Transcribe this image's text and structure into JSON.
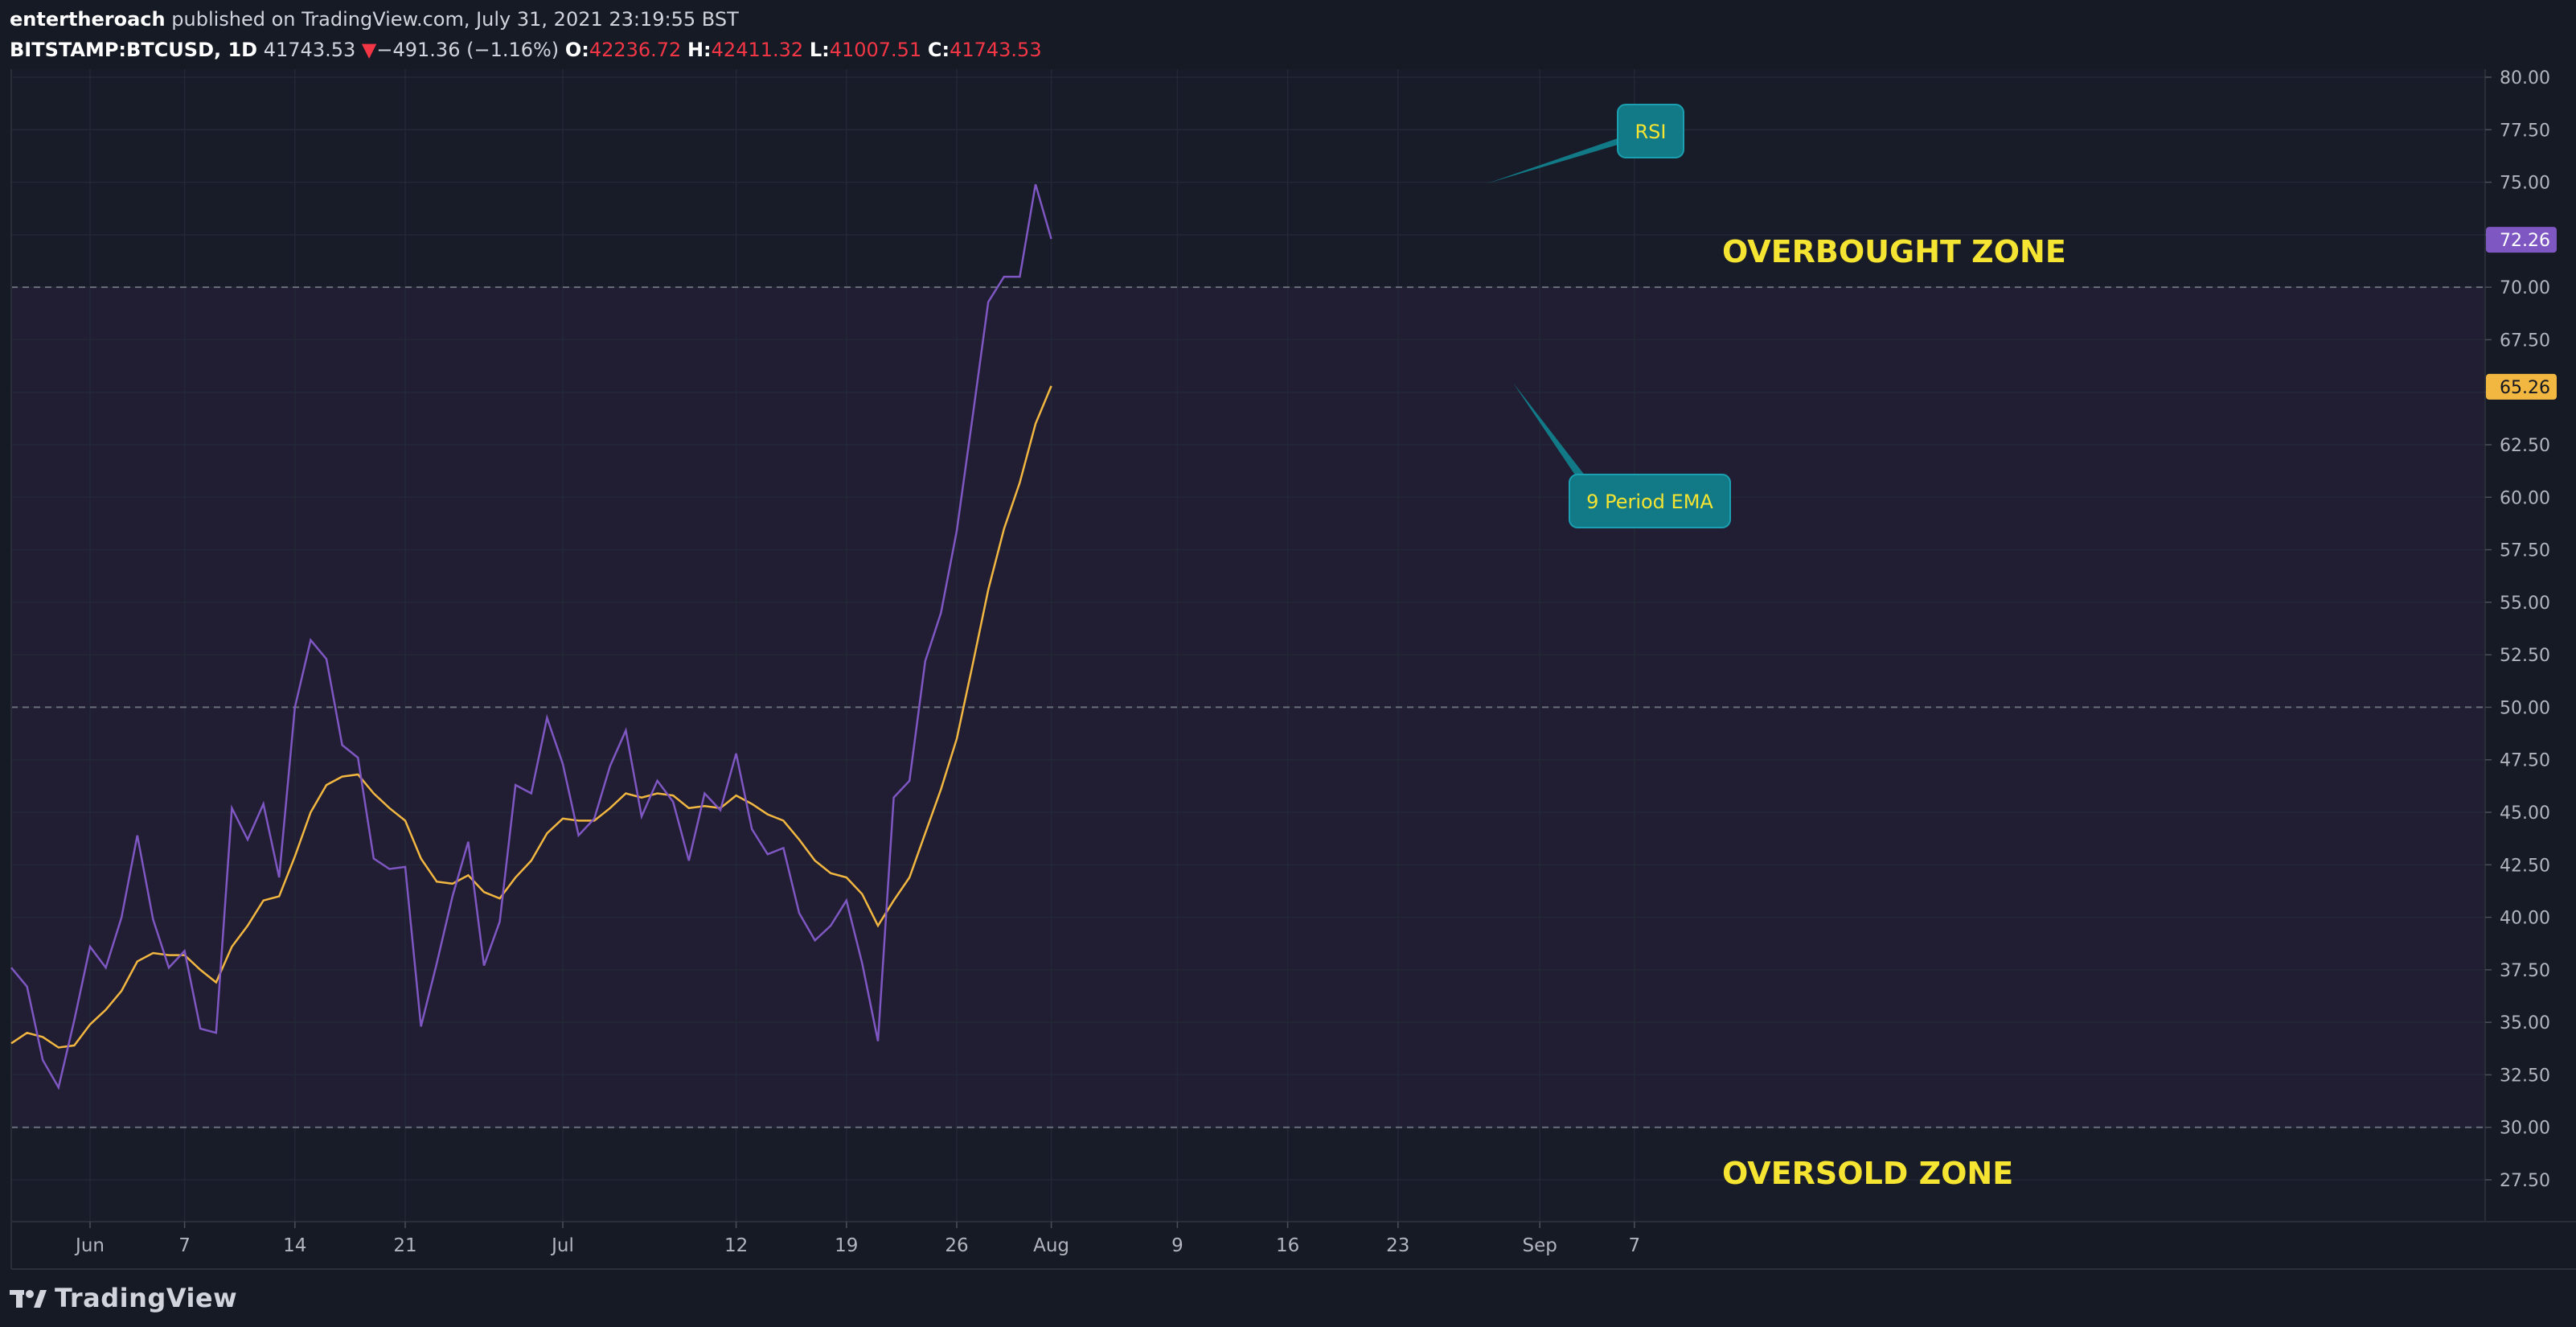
{
  "header": {
    "author": "entertheroach",
    "published_text": "published on TradingView.com, July 31, 2021 23:19:55 BST",
    "symbol": "BITSTAMP:BTCUSD, 1D",
    "price": "41743.53",
    "change_arrow": "▼",
    "change": "−491.36 (−1.16%)",
    "o_label": "O:",
    "o_value": "42236.72",
    "h_label": "H:",
    "h_value": "42411.32",
    "l_label": "L:",
    "l_value": "41007.51",
    "c_label": "C:",
    "c_value": "41743.53"
  },
  "footer": {
    "logo_text": "TradingView"
  },
  "colors": {
    "background": "#161a25",
    "band": "#211d33",
    "rsi": "#7e57c2",
    "ema": "#f2b740",
    "callout": "#127a87",
    "zone_text": "#f5e431",
    "down": "#f23645"
  },
  "chart_data": {
    "type": "line",
    "ylim": [
      26,
      80.4
    ],
    "y_ticks": [
      "80.00",
      "77.50",
      "75.00",
      "72.50",
      "70.00",
      "67.50",
      "65.00",
      "62.50",
      "60.00",
      "57.50",
      "55.00",
      "52.50",
      "50.00",
      "47.50",
      "45.00",
      "42.50",
      "40.00",
      "37.50",
      "35.00",
      "32.50",
      "30.00",
      "27.50"
    ],
    "x_ticks": [
      {
        "label": "Jun",
        "day": 5
      },
      {
        "label": "7",
        "day": 11
      },
      {
        "label": "14",
        "day": 18
      },
      {
        "label": "21",
        "day": 25
      },
      {
        "label": "Jul",
        "day": 35
      },
      {
        "label": "12",
        "day": 46
      },
      {
        "label": "19",
        "day": 53
      },
      {
        "label": "26",
        "day": 60
      },
      {
        "label": "Aug",
        "day": 66
      },
      {
        "label": "9",
        "day": 74
      },
      {
        "label": "16",
        "day": 81
      },
      {
        "label": "23",
        "day": 88
      },
      {
        "label": "Sep",
        "day": 97
      },
      {
        "label": "7",
        "day": 103
      }
    ],
    "levels": {
      "upper": 70,
      "middle": 50,
      "lower": 30
    },
    "series": [
      {
        "name": "RSI",
        "values": [
          37.6,
          36.7,
          33.2,
          31.9,
          35.1,
          38.6,
          37.6,
          40.0,
          43.9,
          39.9,
          37.6,
          38.4,
          34.7,
          34.5,
          45.2,
          43.7,
          45.4,
          41.9,
          50.0,
          53.2,
          52.3,
          48.2,
          47.6,
          42.8,
          42.3,
          42.4,
          34.8,
          37.8,
          41.0,
          43.6,
          37.7,
          39.8,
          46.3,
          45.9,
          49.5,
          47.3,
          43.9,
          44.7,
          47.2,
          48.9,
          44.8,
          46.5,
          45.5,
          42.7,
          45.9,
          45.1,
          47.8,
          44.2,
          43.0,
          43.3,
          40.2,
          38.9,
          39.6,
          40.8,
          37.8,
          34.1,
          45.7,
          46.5,
          52.2,
          54.5,
          58.4,
          63.8,
          69.3,
          70.5,
          70.5,
          74.9,
          72.3
        ]
      },
      {
        "name": "9 Period EMA",
        "values": [
          34.0,
          34.5,
          34.3,
          33.8,
          33.9,
          34.9,
          35.6,
          36.5,
          37.9,
          38.3,
          38.2,
          38.2,
          37.5,
          36.9,
          38.6,
          39.6,
          40.8,
          41.0,
          42.9,
          45.0,
          46.3,
          46.7,
          46.8,
          45.9,
          45.2,
          44.6,
          42.8,
          41.7,
          41.6,
          42.0,
          41.2,
          40.9,
          41.9,
          42.7,
          44.0,
          44.7,
          44.6,
          44.6,
          45.2,
          45.9,
          45.7,
          45.9,
          45.8,
          45.2,
          45.3,
          45.2,
          45.8,
          45.4,
          44.9,
          44.6,
          43.7,
          42.7,
          42.1,
          41.9,
          41.1,
          39.6,
          40.8,
          41.9,
          44.0,
          46.1,
          48.5,
          52.0,
          55.6,
          58.5,
          60.7,
          63.5,
          65.3
        ]
      }
    ],
    "last_values": {
      "rsi": "72.26",
      "ema": "65.26"
    },
    "annotations": {
      "rsi_callout": "RSI",
      "ema_callout": "9 Period EMA",
      "overbought": "OVERBOUGHT ZONE",
      "oversold": "OVERSOLD ZONE"
    }
  }
}
